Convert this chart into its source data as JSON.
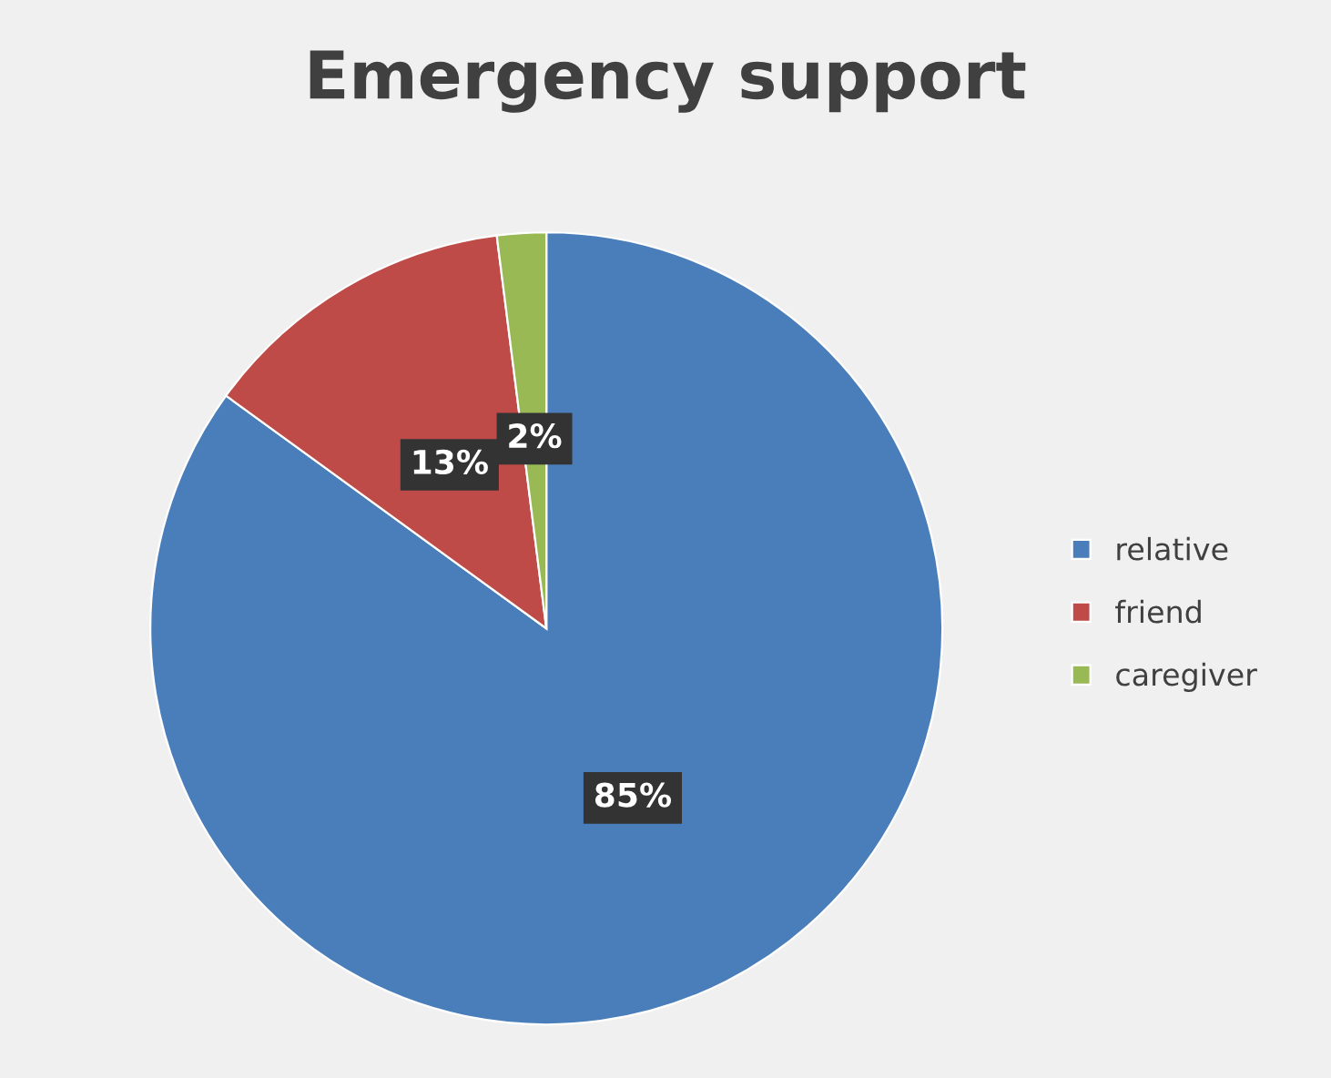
{
  "chart_data": {
    "type": "pie",
    "title": "Emergency support",
    "categories": [
      "relative",
      "friend",
      "caregiver"
    ],
    "values": [
      85,
      13,
      2
    ],
    "colors": [
      "#4a7ebb",
      "#be4b48",
      "#98b954"
    ],
    "value_labels": [
      "85%",
      "13%",
      "2%"
    ],
    "legend": "right"
  }
}
